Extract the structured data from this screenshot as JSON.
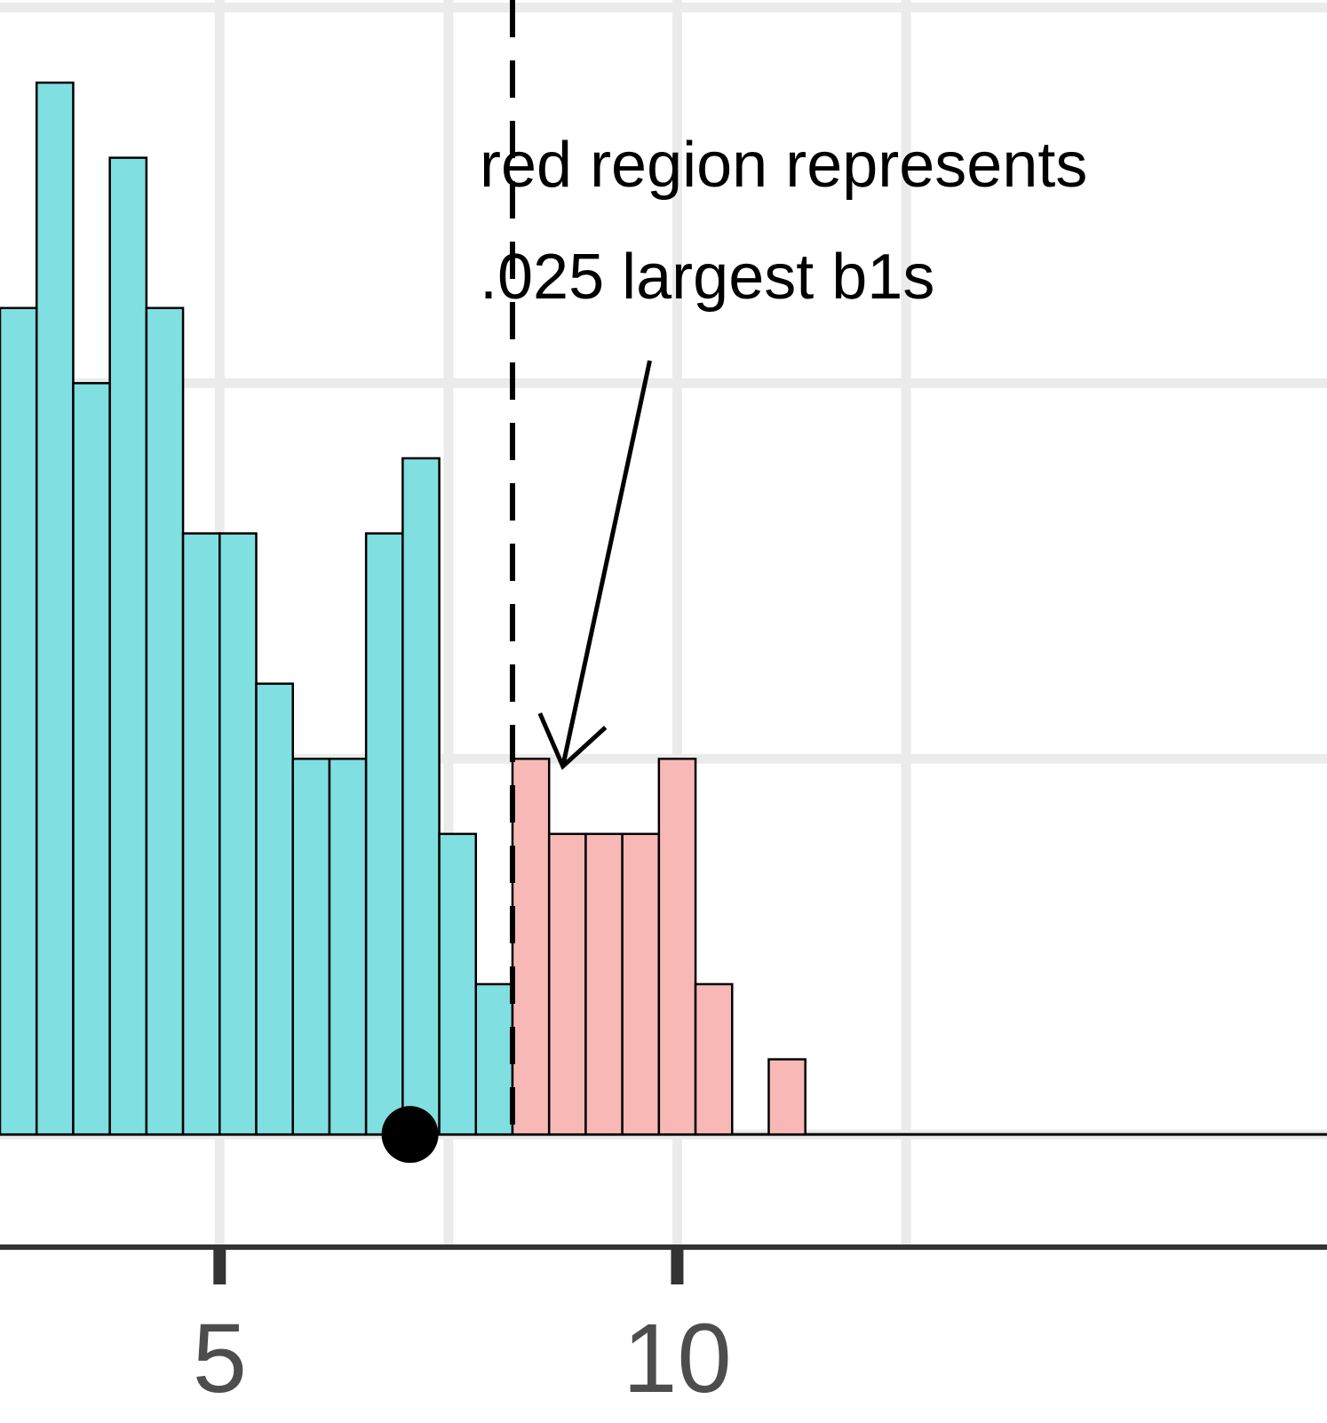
{
  "chart_data": {
    "type": "bar",
    "bin_width": 0.4,
    "bins": [
      {
        "x0": 2.6,
        "x1": 3.0,
        "count": 11,
        "region": "blue"
      },
      {
        "x0": 3.0,
        "x1": 3.4,
        "count": 14,
        "region": "blue"
      },
      {
        "x0": 3.4,
        "x1": 3.8,
        "count": 10,
        "region": "blue"
      },
      {
        "x0": 3.8,
        "x1": 4.2,
        "count": 13,
        "region": "blue"
      },
      {
        "x0": 4.2,
        "x1": 4.6,
        "count": 11,
        "region": "blue"
      },
      {
        "x0": 4.6,
        "x1": 5.0,
        "count": 8,
        "region": "blue"
      },
      {
        "x0": 5.0,
        "x1": 5.4,
        "count": 8,
        "region": "blue"
      },
      {
        "x0": 5.4,
        "x1": 5.8,
        "count": 6,
        "region": "blue"
      },
      {
        "x0": 5.8,
        "x1": 6.2,
        "count": 5,
        "region": "blue"
      },
      {
        "x0": 6.2,
        "x1": 6.6,
        "count": 5,
        "region": "blue"
      },
      {
        "x0": 6.6,
        "x1": 7.0,
        "count": 8,
        "region": "blue"
      },
      {
        "x0": 7.0,
        "x1": 7.4,
        "count": 9,
        "region": "blue"
      },
      {
        "x0": 7.4,
        "x1": 7.8,
        "count": 4,
        "region": "blue"
      },
      {
        "x0": 7.8,
        "x1": 8.2,
        "count": 2,
        "region": "blue"
      },
      {
        "x0": 8.2,
        "x1": 8.6,
        "count": 5,
        "region": "red"
      },
      {
        "x0": 8.6,
        "x1": 9.0,
        "count": 4,
        "region": "red"
      },
      {
        "x0": 9.0,
        "x1": 9.4,
        "count": 4,
        "region": "red"
      },
      {
        "x0": 9.4,
        "x1": 9.8,
        "count": 4,
        "region": "red"
      },
      {
        "x0": 9.8,
        "x1": 10.2,
        "count": 5,
        "region": "red"
      },
      {
        "x0": 10.2,
        "x1": 10.6,
        "count": 2,
        "region": "red"
      },
      {
        "x0": 10.6,
        "x1": 11.0,
        "count": 0,
        "region": "red"
      },
      {
        "x0": 11.0,
        "x1": 11.4,
        "count": 1,
        "region": "red"
      }
    ],
    "baseline_extent": [
      2.6,
      18.1
    ],
    "cutoff_line_x": 8.2,
    "point_x": 7.08,
    "xlim": [
      2.6,
      17.1
    ],
    "ylim": [
      -1.5,
      15.1
    ],
    "x_ticks": [
      5,
      10
    ],
    "x_tick_labels": [
      "5",
      "10"
    ],
    "x_minor_grid": [
      7.5,
      12.5
    ],
    "y_gridlines": [
      0,
      5,
      10,
      15
    ],
    "colors": {
      "blue_fill": "#80DFE0",
      "red_fill": "#F8B9B6",
      "bar_outline": "#000000",
      "grid": "#EBEBEB",
      "axis": "#333333"
    },
    "annotation": {
      "lines": [
        "red region represents",
        ".025 largest b1s"
      ],
      "arrow_from": [
        9.7,
        10.3
      ],
      "arrow_to": [
        8.75,
        4.9
      ]
    }
  }
}
